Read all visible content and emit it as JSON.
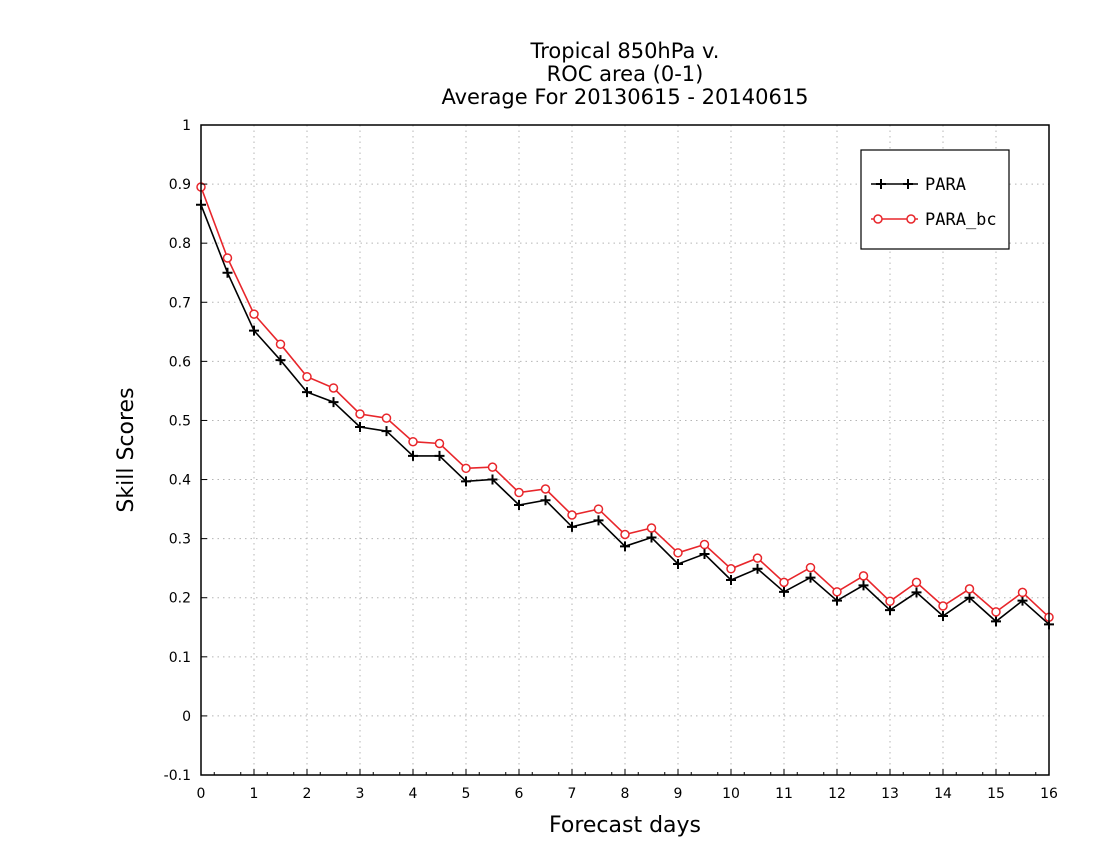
{
  "chart_data": {
    "type": "line",
    "title_lines": [
      "Tropical 850hPa v.",
      "ROC area (0-1)",
      "Average For 20130615 - 20140615"
    ],
    "xlabel": "Forecast days",
    "ylabel": "Skill Scores",
    "xlim": [
      0,
      16
    ],
    "ylim": [
      -0.1,
      1
    ],
    "grid": true,
    "legend_position": "top-right",
    "x_ticks": [
      "0",
      "1",
      "2",
      "3",
      "4",
      "5",
      "6",
      "7",
      "8",
      "9",
      "10",
      "11",
      "12",
      "13",
      "14",
      "15",
      "16"
    ],
    "y_ticks": [
      "-0.1",
      "0",
      "0.1",
      "0.2",
      "0.3",
      "0.4",
      "0.5",
      "0.6",
      "0.7",
      "0.8",
      "0.9",
      "1"
    ],
    "x": [
      0,
      0.5,
      1,
      1.5,
      2,
      2.5,
      3,
      3.5,
      4,
      4.5,
      5,
      5.5,
      6,
      6.5,
      7,
      7.5,
      8,
      8.5,
      9,
      9.5,
      10,
      10.5,
      11,
      11.5,
      12,
      12.5,
      13,
      13.5,
      14,
      14.5,
      15,
      15.5,
      16
    ],
    "series": [
      {
        "name": "PARA",
        "color": "#000000",
        "marker": "plus",
        "values": [
          0.865,
          0.75,
          0.652,
          0.602,
          0.548,
          0.531,
          0.489,
          0.482,
          0.44,
          0.44,
          0.397,
          0.4,
          0.357,
          0.365,
          0.32,
          0.331,
          0.287,
          0.302,
          0.257,
          0.274,
          0.23,
          0.249,
          0.21,
          0.234,
          0.195,
          0.221,
          0.179,
          0.209,
          0.169,
          0.2,
          0.16,
          0.195,
          0.155
        ]
      },
      {
        "name": "PARA_bc",
        "color": "#e8262b",
        "marker": "circle",
        "values": [
          0.895,
          0.775,
          0.68,
          0.629,
          0.574,
          0.555,
          0.511,
          0.504,
          0.464,
          0.461,
          0.419,
          0.421,
          0.378,
          0.384,
          0.34,
          0.35,
          0.307,
          0.318,
          0.276,
          0.29,
          0.249,
          0.267,
          0.226,
          0.251,
          0.21,
          0.237,
          0.194,
          0.226,
          0.186,
          0.215,
          0.176,
          0.209,
          0.167
        ]
      }
    ]
  }
}
